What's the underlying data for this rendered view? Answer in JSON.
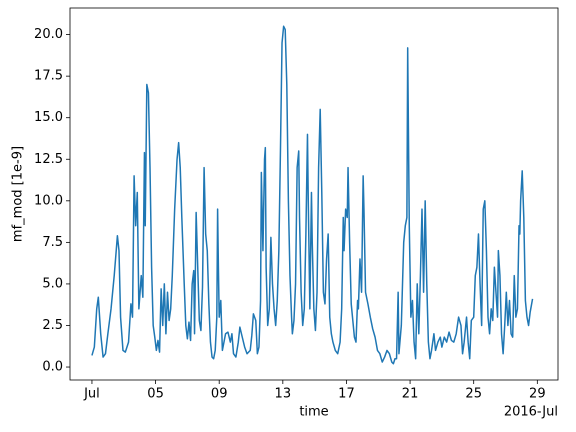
{
  "chart_data": {
    "type": "line",
    "xlabel": "time",
    "ylabel": "mf_mod [1e-9]",
    "x_offset_label": "2016-Jul",
    "xlim": [
      -0.38,
      30.3
    ],
    "ylim": [
      -0.78,
      21.6
    ],
    "grid": false,
    "xticks": [
      {
        "value": 1,
        "label": "Jul"
      },
      {
        "value": 5,
        "label": "05"
      },
      {
        "value": 9,
        "label": "09"
      },
      {
        "value": 13,
        "label": "13"
      },
      {
        "value": 17,
        "label": "17"
      },
      {
        "value": 21,
        "label": "21"
      },
      {
        "value": 25,
        "label": "25"
      },
      {
        "value": 29,
        "label": "29"
      }
    ],
    "yticks": [
      {
        "value": 0,
        "label": "0.0"
      },
      {
        "value": 2.5,
        "label": "2.5"
      },
      {
        "value": 5,
        "label": "5.0"
      },
      {
        "value": 7.5,
        "label": "7.5"
      },
      {
        "value": 10,
        "label": "10.0"
      },
      {
        "value": 12.5,
        "label": "12.5"
      },
      {
        "value": 15,
        "label": "15.0"
      },
      {
        "value": 17.5,
        "label": "17.5"
      },
      {
        "value": 20,
        "label": "20.0"
      }
    ],
    "x": [
      1.0,
      1.15,
      1.3,
      1.4,
      1.55,
      1.7,
      1.85,
      2.0,
      2.2,
      2.4,
      2.6,
      2.7,
      2.8,
      2.95,
      3.1,
      3.3,
      3.45,
      3.55,
      3.65,
      3.75,
      3.85,
      3.95,
      4.1,
      4.2,
      4.3,
      4.35,
      4.45,
      4.55,
      4.65,
      4.75,
      4.85,
      4.95,
      5.05,
      5.15,
      5.25,
      5.35,
      5.45,
      5.55,
      5.65,
      5.75,
      5.85,
      5.95,
      6.05,
      6.2,
      6.35,
      6.45,
      6.55,
      6.65,
      6.8,
      6.9,
      7.0,
      7.1,
      7.2,
      7.3,
      7.4,
      7.45,
      7.55,
      7.65,
      7.75,
      7.85,
      7.95,
      8.05,
      8.15,
      8.25,
      8.35,
      8.45,
      8.55,
      8.65,
      8.75,
      8.85,
      8.9,
      8.95,
      9.0,
      9.1,
      9.2,
      9.3,
      9.4,
      9.55,
      9.7,
      9.8,
      9.9,
      10.05,
      10.2,
      10.3,
      10.45,
      10.6,
      10.75,
      10.95,
      11.05,
      11.15,
      11.3,
      11.4,
      11.5,
      11.6,
      11.65,
      11.75,
      11.85,
      11.9,
      11.95,
      12.05,
      12.15,
      12.25,
      12.35,
      12.45,
      12.55,
      12.65,
      12.75,
      12.85,
      12.95,
      13.05,
      13.15,
      13.25,
      13.35,
      13.45,
      13.55,
      13.6,
      13.7,
      13.8,
      13.9,
      14.0,
      14.05,
      14.15,
      14.25,
      14.35,
      14.45,
      14.55,
      14.6,
      14.7,
      14.8,
      14.85,
      14.95,
      15.05,
      15.15,
      15.25,
      15.35,
      15.45,
      15.55,
      15.65,
      15.75,
      15.85,
      15.95,
      16.05,
      16.15,
      16.3,
      16.45,
      16.6,
      16.7,
      16.8,
      16.85,
      16.95,
      17.05,
      17.1,
      17.2,
      17.3,
      17.4,
      17.5,
      17.6,
      17.7,
      17.75,
      17.85,
      17.95,
      18.05,
      18.1,
      18.2,
      18.35,
      18.5,
      18.65,
      18.8,
      18.95,
      19.1,
      19.25,
      19.4,
      19.55,
      19.7,
      19.85,
      19.95,
      20.05,
      20.15,
      20.25,
      20.3,
      20.45,
      20.6,
      20.7,
      20.8,
      20.85,
      20.95,
      21.05,
      21.15,
      21.25,
      21.35,
      21.45,
      21.55,
      21.65,
      21.75,
      21.85,
      21.95,
      22.05,
      22.15,
      22.25,
      22.35,
      22.5,
      22.6,
      22.75,
      22.9,
      23.0,
      23.15,
      23.3,
      23.45,
      23.6,
      23.75,
      23.9,
      24.05,
      24.2,
      24.3,
      24.4,
      24.55,
      24.65,
      24.75,
      24.85,
      25.0,
      25.1,
      25.2,
      25.3,
      25.4,
      25.5,
      25.6,
      25.7,
      25.8,
      25.9,
      26.0,
      26.1,
      26.2,
      26.3,
      26.4,
      26.5,
      26.55,
      26.65,
      26.75,
      26.85,
      26.95,
      27.05,
      27.15,
      27.25,
      27.35,
      27.45,
      27.55,
      27.65,
      27.75,
      27.85,
      27.9,
      27.95,
      28.05,
      28.15,
      28.25,
      28.35,
      28.45,
      28.55,
      28.7
    ],
    "series": [
      {
        "color": "#1f77b4",
        "values": [
          0.7,
          1.2,
          3.5,
          4.2,
          2.0,
          0.6,
          0.8,
          2.0,
          3.5,
          5.5,
          7.9,
          7.0,
          3.0,
          1.0,
          0.9,
          1.5,
          3.8,
          3.0,
          11.5,
          8.5,
          10.5,
          3.5,
          5.5,
          4.2,
          12.9,
          8.5,
          17.0,
          16.5,
          12.0,
          6.0,
          2.5,
          1.8,
          1.0,
          1.6,
          0.9,
          4.7,
          2.5,
          5.0,
          2.0,
          4.5,
          2.8,
          3.5,
          5.5,
          9.5,
          12.5,
          13.5,
          12.0,
          9.0,
          5.0,
          2.5,
          1.7,
          2.7,
          1.6,
          5.0,
          5.8,
          2.0,
          9.3,
          6.0,
          2.8,
          2.2,
          4.8,
          12.0,
          8.0,
          7.0,
          3.8,
          1.5,
          0.6,
          0.5,
          1.0,
          3.0,
          9.5,
          6.0,
          3.0,
          4.0,
          1.0,
          1.5,
          2.0,
          2.1,
          1.5,
          2.0,
          0.8,
          0.6,
          1.5,
          2.4,
          1.8,
          1.2,
          0.8,
          1.0,
          1.9,
          3.2,
          2.8,
          0.8,
          1.2,
          4.0,
          11.7,
          7.0,
          12.5,
          13.2,
          6.0,
          2.5,
          3.5,
          7.8,
          5.0,
          3.5,
          2.5,
          4.0,
          7.0,
          13.0,
          19.5,
          20.5,
          20.3,
          17.0,
          10.0,
          5.5,
          3.0,
          2.0,
          2.8,
          5.0,
          12.0,
          13.0,
          9.0,
          4.5,
          2.5,
          3.5,
          8.0,
          14.0,
          10.0,
          3.5,
          10.5,
          7.5,
          3.5,
          2.2,
          4.5,
          12.0,
          15.5,
          10.5,
          4.5,
          3.8,
          6.5,
          8.0,
          3.0,
          2.0,
          1.5,
          1.0,
          0.8,
          1.5,
          3.5,
          9.0,
          7.0,
          9.5,
          9.0,
          12.0,
          7.5,
          3.8,
          2.8,
          1.8,
          1.5,
          4.0,
          3.5,
          6.5,
          4.5,
          11.5,
          9.5,
          4.5,
          3.8,
          3.0,
          2.3,
          1.8,
          1.0,
          0.8,
          0.3,
          0.6,
          1.0,
          0.8,
          0.3,
          0.2,
          0.5,
          0.5,
          4.5,
          0.8,
          2.5,
          7.5,
          8.5,
          9.0,
          19.2,
          8.5,
          3.0,
          4.0,
          1.5,
          0.5,
          5.0,
          2.0,
          5.5,
          9.5,
          4.5,
          10.0,
          5.0,
          1.5,
          0.5,
          1.0,
          2.0,
          1.0,
          1.5,
          1.8,
          1.2,
          1.8,
          1.5,
          2.1,
          1.6,
          1.5,
          2.0,
          3.0,
          2.5,
          0.8,
          1.5,
          3.0,
          1.5,
          0.5,
          2.8,
          3.0,
          5.5,
          6.0,
          8.0,
          5.0,
          2.5,
          9.5,
          10.0,
          7.0,
          3.0,
          2.0,
          3.5,
          2.8,
          6.0,
          4.5,
          3.0,
          7.0,
          5.5,
          2.0,
          0.8,
          2.5,
          4.5,
          2.5,
          4.0,
          2.0,
          1.8,
          5.5,
          3.0,
          3.5,
          8.5,
          8.0,
          10.0,
          11.8,
          9.0,
          4.0,
          3.0,
          2.5,
          3.3,
          4.1
        ]
      }
    ]
  }
}
